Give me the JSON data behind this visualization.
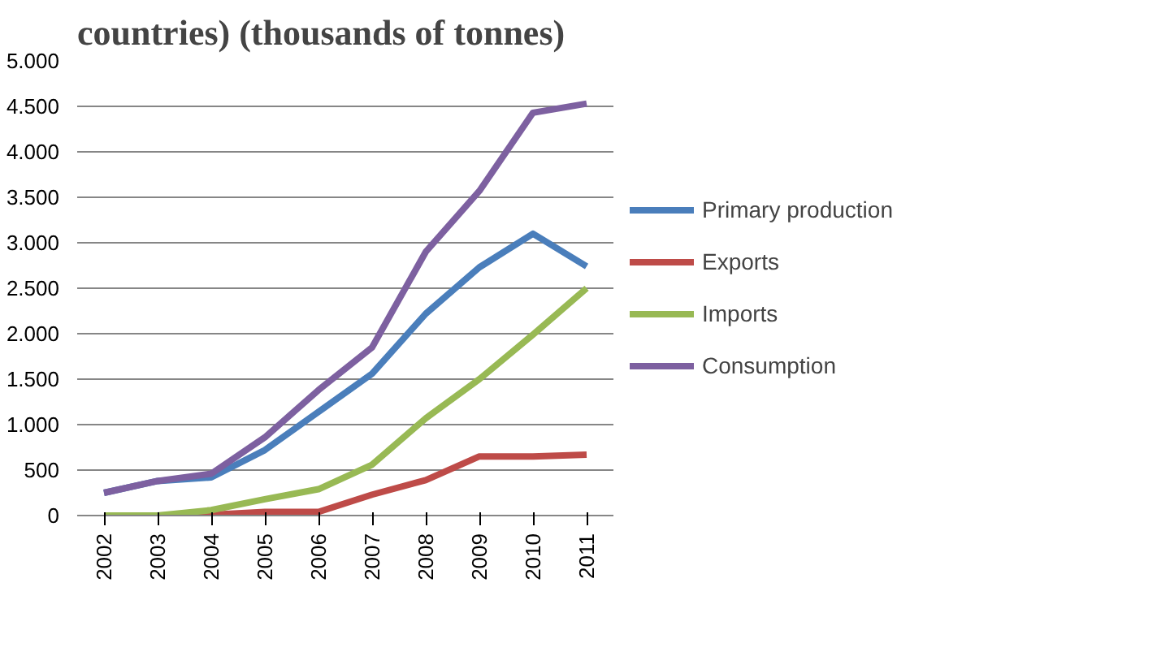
{
  "chart_data": {
    "type": "line",
    "title": "countries) (thousands of tonnes)",
    "categories": [
      "2002",
      "2003",
      "2004",
      "2005",
      "2006",
      "2007",
      "2008",
      "2009",
      "2010",
      "2011"
    ],
    "series": [
      {
        "name": "Primary production",
        "color": "#4a7ebb",
        "values": [
          250,
          380,
          420,
          720,
          1140,
          1560,
          2220,
          2730,
          3100,
          2740
        ]
      },
      {
        "name": "Exports",
        "color": "#be4b48",
        "values": [
          0,
          0,
          10,
          40,
          40,
          230,
          390,
          650,
          650,
          670
        ]
      },
      {
        "name": "Imports",
        "color": "#98b954",
        "values": [
          0,
          0,
          60,
          180,
          290,
          560,
          1070,
          1500,
          1990,
          2500
        ]
      },
      {
        "name": "Consumption",
        "color": "#7d60a0",
        "values": [
          250,
          380,
          460,
          860,
          1380,
          1850,
          2900,
          3570,
          4430,
          4530
        ]
      }
    ],
    "ylim": [
      0,
      5000
    ],
    "yticks": [
      {
        "value": 0,
        "label": "0"
      },
      {
        "value": 500,
        "label": "500"
      },
      {
        "value": 1000,
        "label": "1.000"
      },
      {
        "value": 1500,
        "label": "1.500"
      },
      {
        "value": 2000,
        "label": "2.000"
      },
      {
        "value": 2500,
        "label": "2.500"
      },
      {
        "value": 3000,
        "label": "3.000"
      },
      {
        "value": 3500,
        "label": "3.500"
      },
      {
        "value": 4000,
        "label": "4.000"
      },
      {
        "value": 4500,
        "label": "4.500"
      },
      {
        "value": 5000,
        "label": "5.000"
      }
    ],
    "grid": "y",
    "legend": "right",
    "marker": "none",
    "line_style": "solid"
  }
}
